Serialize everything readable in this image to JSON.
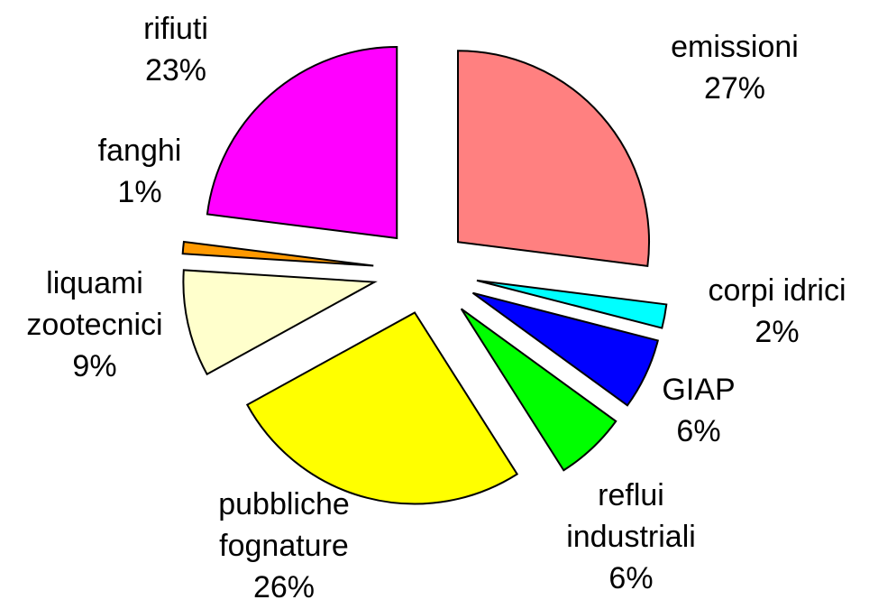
{
  "chart_data": {
    "type": "pie",
    "categories": [
      "emissioni",
      "corpi idrici",
      "GIAP",
      "reflui industriali",
      "pubbliche fognature",
      "liquami zootecnici",
      "fanghi",
      "rifiuti"
    ],
    "values": [
      27,
      2,
      6,
      6,
      26,
      9,
      1,
      23
    ],
    "value_labels": [
      "27%",
      "2%",
      "6%",
      "6%",
      "26%",
      "9%",
      "1%",
      "23%"
    ],
    "colors": [
      "#ff8080",
      "#00ffff",
      "#0000ff",
      "#00ff00",
      "#ffff00",
      "#ffffcc",
      "#ff9900",
      "#ff00ff"
    ]
  }
}
